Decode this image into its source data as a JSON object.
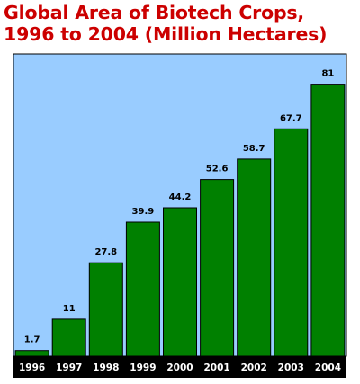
{
  "title_lines": [
    "Global Area of Biotech Crops,",
    "1996 to 2004 (Million Hectares)"
  ],
  "chart_data": {
    "type": "bar",
    "title": "Global Area of Biotech Crops, 1996 to 2004 (Million Hectares)",
    "categories": [
      "1996",
      "1997",
      "1998",
      "1999",
      "2000",
      "2001",
      "2002",
      "2003",
      "2004"
    ],
    "values": [
      1.7,
      11,
      27.8,
      39.9,
      44.2,
      52.6,
      58.7,
      67.7,
      81
    ],
    "value_labels": [
      "1.7",
      "11",
      "27.8",
      "39.9",
      "44.2",
      "52.6",
      "58.7",
      "67.7",
      "81"
    ],
    "xlabel": "",
    "ylabel": "",
    "ylim": [
      0,
      90
    ],
    "grid": false,
    "legend": "none",
    "colors": {
      "bar_fill": "#008000",
      "plot_background": "#99ccff",
      "axis_band": "#000000",
      "title": "#cc0000"
    }
  }
}
